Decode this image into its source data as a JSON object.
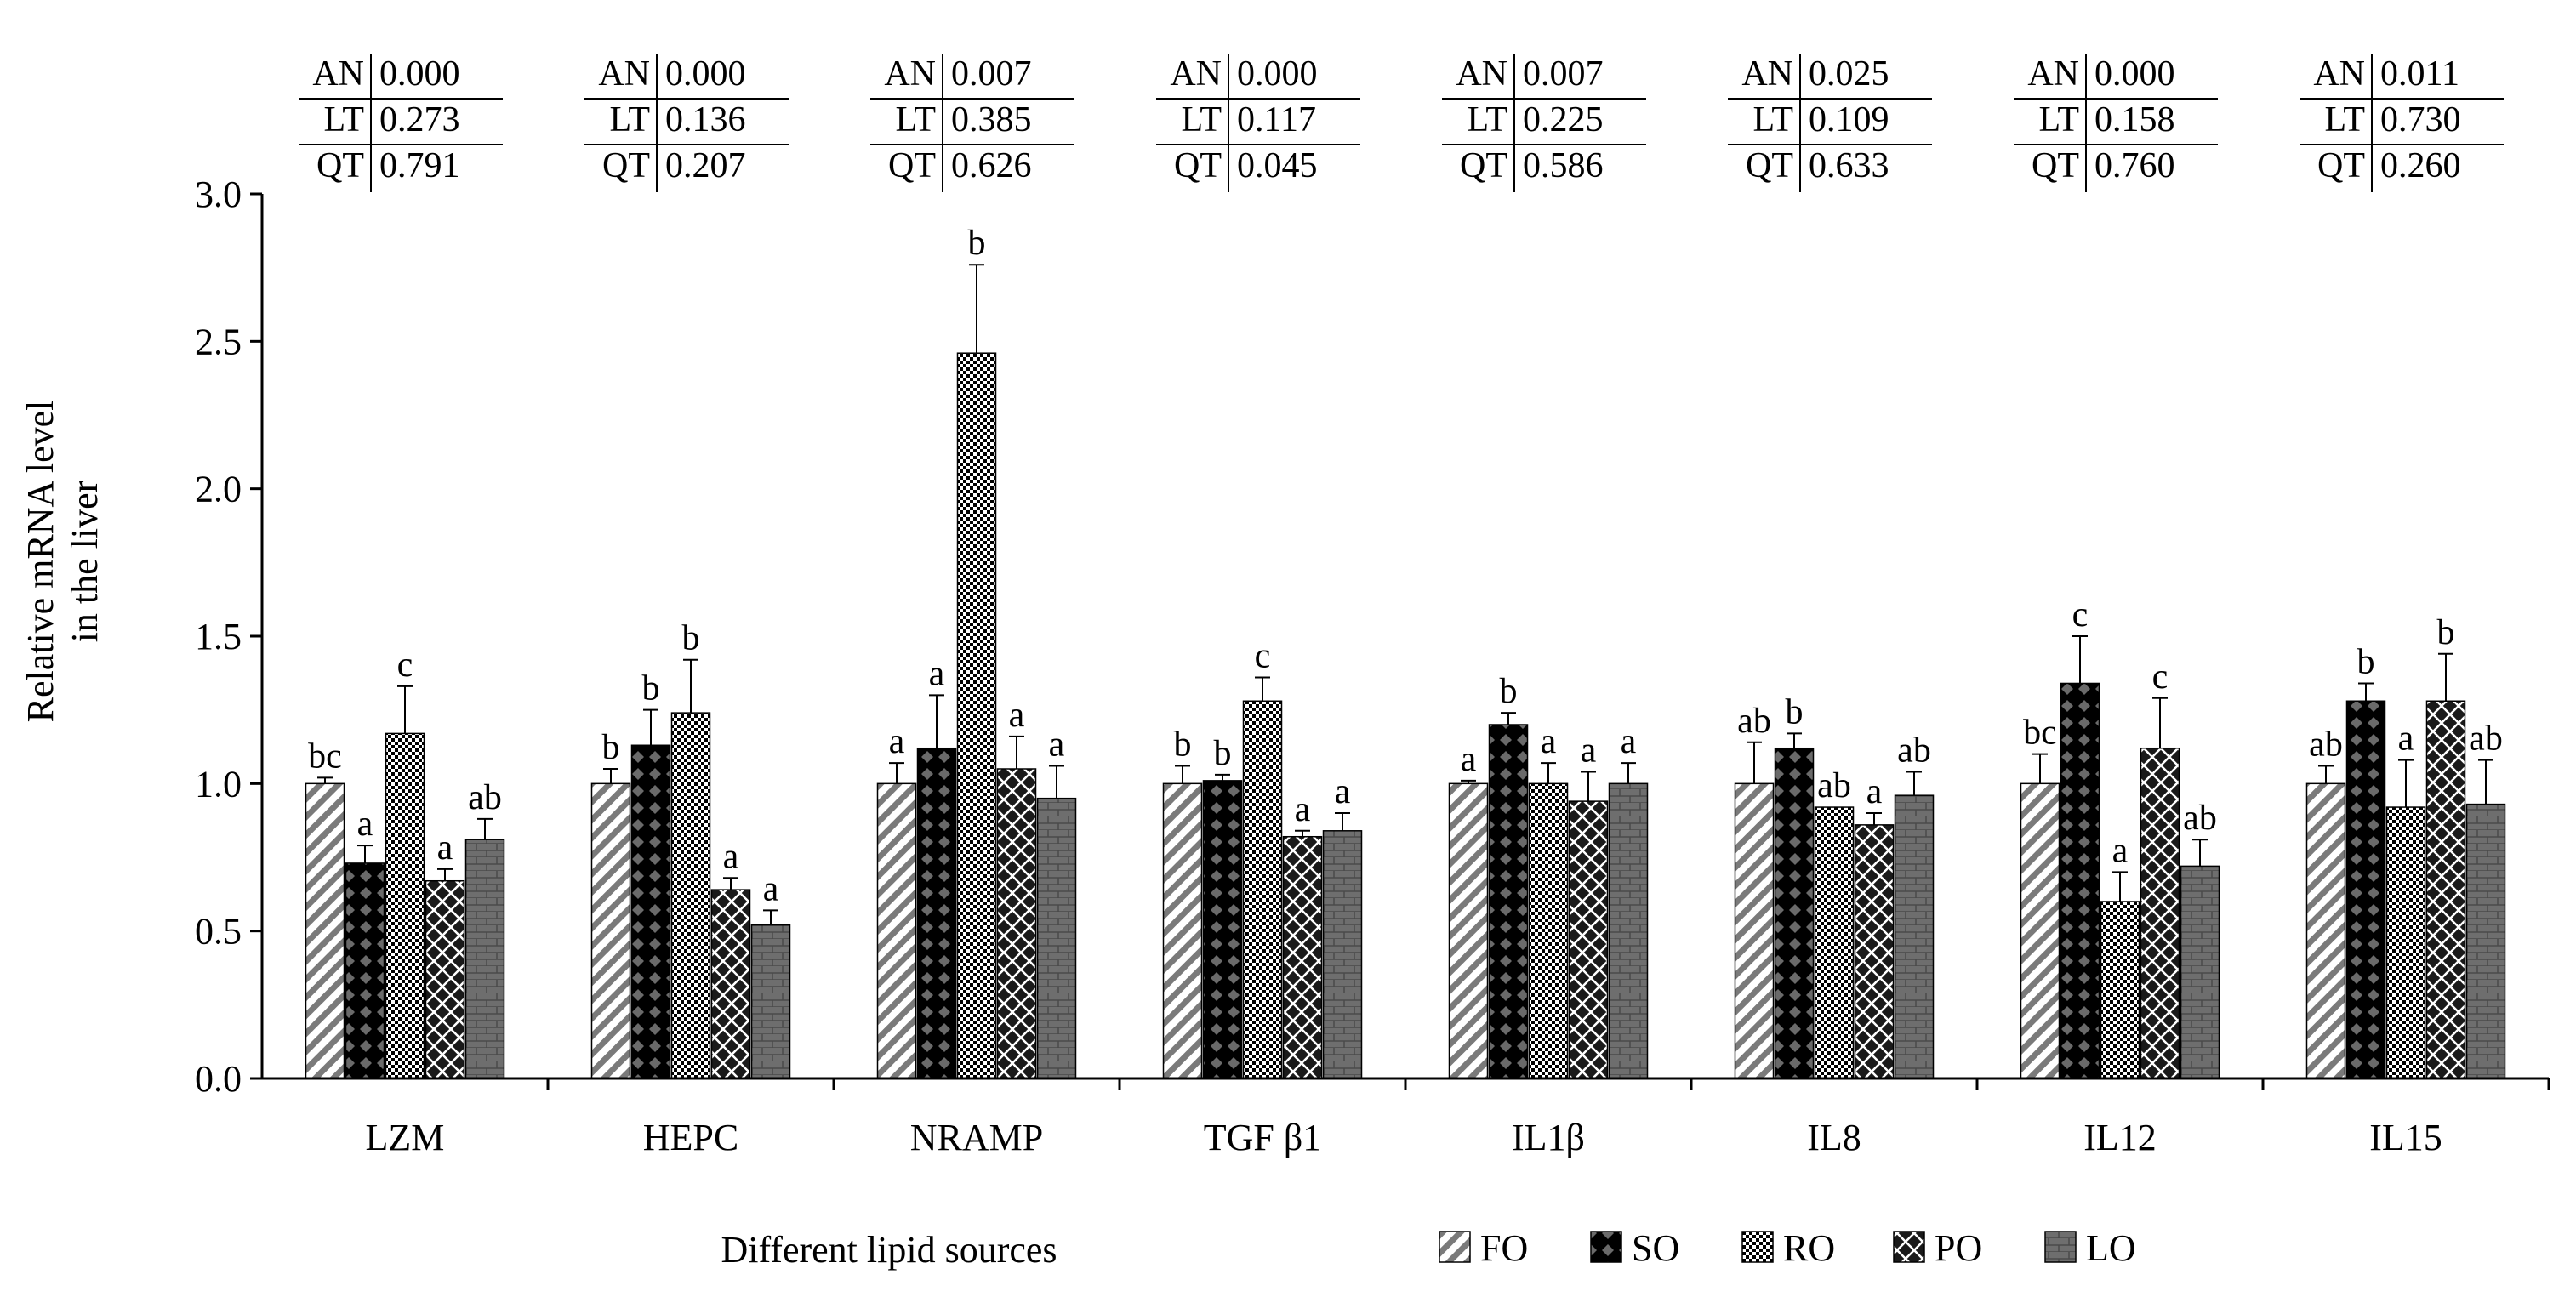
{
  "chart_data": {
    "type": "bar",
    "categories": [
      "LZM",
      "HEPC",
      "NRAMP",
      "TGF β1",
      "IL1β",
      "IL8",
      "IL12",
      "IL15"
    ],
    "xlabel": "Different lipid sources",
    "ylabel_lines": [
      "Relative mRNA level",
      "in the liver"
    ],
    "ylim": [
      0,
      3.0
    ],
    "yticks": [
      "0.0",
      "0.5",
      "1.0",
      "1.5",
      "2.0",
      "2.5",
      "3.0"
    ],
    "legend_position": "bottom-right",
    "grid": false,
    "series": [
      {
        "name": "FO",
        "pattern": "diagonal-stripes",
        "values": [
          1.0,
          1.0,
          1.0,
          1.0,
          1.0,
          1.0,
          1.0,
          1.0
        ],
        "errors": [
          0.02,
          0.05,
          0.07,
          0.06,
          0.01,
          0.14,
          0.1,
          0.06
        ],
        "letters": [
          "bc",
          "b",
          "a",
          "b",
          "a",
          "ab",
          "bc",
          "ab"
        ]
      },
      {
        "name": "SO",
        "pattern": "black-diamonds",
        "values": [
          0.73,
          1.13,
          1.12,
          1.01,
          1.2,
          1.12,
          1.34,
          1.28
        ],
        "errors": [
          0.06,
          0.12,
          0.18,
          0.02,
          0.04,
          0.05,
          0.16,
          0.06
        ],
        "letters": [
          "a",
          "b",
          "a",
          "b",
          "b",
          "b",
          "c",
          "b"
        ]
      },
      {
        "name": "RO",
        "pattern": "checker",
        "values": [
          1.17,
          1.24,
          2.46,
          1.28,
          1.0,
          0.92,
          0.6,
          0.92
        ],
        "errors": [
          0.16,
          0.18,
          0.3,
          0.08,
          0.07,
          0.0,
          0.1,
          0.16
        ],
        "letters": [
          "c",
          "b",
          "b",
          "c",
          "a",
          "ab",
          "a",
          "a"
        ]
      },
      {
        "name": "PO",
        "pattern": "dark-diamonds",
        "values": [
          0.67,
          0.64,
          1.05,
          0.82,
          0.94,
          0.86,
          1.12,
          1.28
        ],
        "errors": [
          0.04,
          0.04,
          0.11,
          0.02,
          0.1,
          0.04,
          0.17,
          0.16
        ],
        "letters": [
          "a",
          "a",
          "a",
          "a",
          "a",
          "a",
          "c",
          "b"
        ]
      },
      {
        "name": "LO",
        "pattern": "brick",
        "values": [
          0.81,
          0.52,
          0.95,
          0.84,
          1.0,
          0.96,
          0.72,
          0.93
        ],
        "errors": [
          0.07,
          0.05,
          0.11,
          0.06,
          0.07,
          0.08,
          0.09,
          0.15
        ],
        "letters": [
          "ab",
          "a",
          "a",
          "a",
          "a",
          "ab",
          "ab",
          "ab"
        ]
      }
    ],
    "stats_tables": [
      {
        "category": "LZM",
        "rows": [
          {
            "label": "AN",
            "value": "0.000"
          },
          {
            "label": "LT",
            "value": "0.273"
          },
          {
            "label": "QT",
            "value": "0.791"
          }
        ]
      },
      {
        "category": "HEPC",
        "rows": [
          {
            "label": "AN",
            "value": "0.000"
          },
          {
            "label": "LT",
            "value": "0.136"
          },
          {
            "label": "QT",
            "value": "0.207"
          }
        ]
      },
      {
        "category": "NRAMP",
        "rows": [
          {
            "label": "AN",
            "value": "0.007"
          },
          {
            "label": "LT",
            "value": "0.385"
          },
          {
            "label": "QT",
            "value": "0.626"
          }
        ]
      },
      {
        "category": "TGF β1",
        "rows": [
          {
            "label": "AN",
            "value": "0.000"
          },
          {
            "label": "LT",
            "value": "0.117"
          },
          {
            "label": "QT",
            "value": "0.045"
          }
        ]
      },
      {
        "category": "IL1β",
        "rows": [
          {
            "label": "AN",
            "value": "0.007"
          },
          {
            "label": "LT",
            "value": "0.225"
          },
          {
            "label": "QT",
            "value": "0.586"
          }
        ]
      },
      {
        "category": "IL8",
        "rows": [
          {
            "label": "AN",
            "value": "0.025"
          },
          {
            "label": "LT",
            "value": "0.109"
          },
          {
            "label": "QT",
            "value": "0.633"
          }
        ]
      },
      {
        "category": "IL12",
        "rows": [
          {
            "label": "AN",
            "value": "0.000"
          },
          {
            "label": "LT",
            "value": "0.158"
          },
          {
            "label": "QT",
            "value": "0.760"
          }
        ]
      },
      {
        "category": "IL15",
        "rows": [
          {
            "label": "AN",
            "value": "0.011"
          },
          {
            "label": "LT",
            "value": "0.730"
          },
          {
            "label": "QT",
            "value": "0.260"
          }
        ]
      }
    ]
  }
}
